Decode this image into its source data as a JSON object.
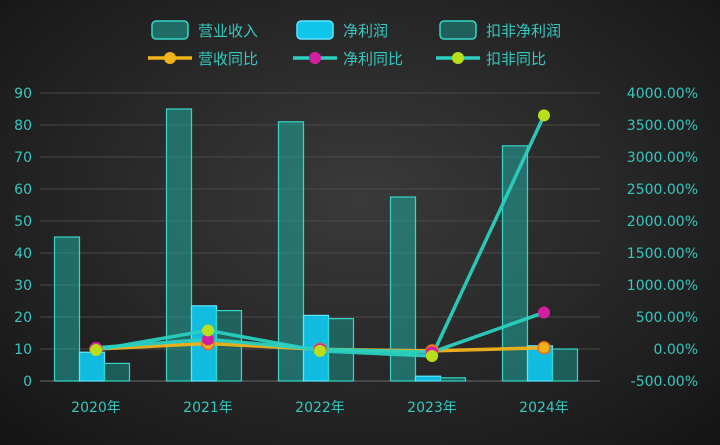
{
  "chart_data": {
    "type": "bar",
    "categories": [
      "2020年",
      "2021年",
      "2022年",
      "2023年",
      "2024年"
    ],
    "series": [
      {
        "name": "营业收入",
        "kind": "bar",
        "axis": "left",
        "values": [
          45,
          85,
          81,
          57.5,
          73.5
        ],
        "color": "#1fa89e"
      },
      {
        "name": "净利润",
        "kind": "bar",
        "axis": "left",
        "values": [
          9,
          23.5,
          20.5,
          1.5,
          11
        ],
        "color": "#0fc5ea"
      },
      {
        "name": "扣非净利润",
        "kind": "bar",
        "axis": "left",
        "values": [
          5.5,
          22,
          19.5,
          1,
          10
        ],
        "color": "#1a8f87"
      },
      {
        "name": "营收同比",
        "kind": "line",
        "axis": "right",
        "values": [
          0,
          85,
          -5,
          -30,
          20
        ],
        "color": "#f2b21a"
      },
      {
        "name": "净利同比",
        "kind": "line",
        "axis": "right",
        "values": [
          20,
          150,
          -5,
          -50,
          570
        ],
        "color": "#d21fa0"
      },
      {
        "name": "扣非同比",
        "kind": "line",
        "axis": "right",
        "values": [
          -15,
          290,
          -30,
          -110,
          3650
        ],
        "color": "#b8e01a"
      }
    ],
    "line_stroke_color": "#2ad0c0",
    "ylim_left": [
      0,
      90
    ],
    "yticks_left": [
      "0",
      "10",
      "20",
      "30",
      "40",
      "50",
      "60",
      "70",
      "80",
      "90"
    ],
    "ylim_right": [
      -500,
      4000
    ],
    "yticks_right": [
      "-500.00%",
      "0.00%",
      "500.00%",
      "1000.00%",
      "1500.00%",
      "2000.00%",
      "2500.00%",
      "3000.00%",
      "3500.00%",
      "4000.00%"
    ],
    "grid": true,
    "legend_position": "top-center"
  }
}
